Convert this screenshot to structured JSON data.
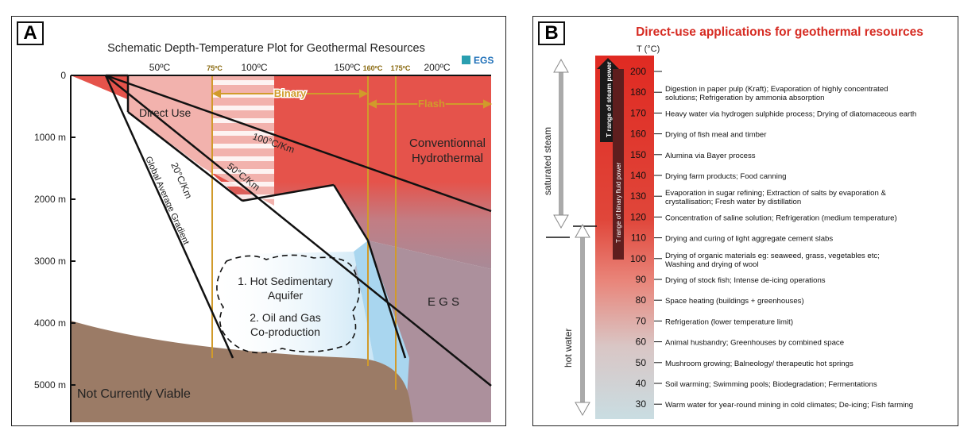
{
  "panel_a": {
    "label": "A",
    "title": "Schematic Depth-Temperature Plot for Geothermal Resources",
    "logo": "EGS",
    "temp_ticks": [
      "50ºC",
      "75ºC",
      "100ºC",
      "150ºC",
      "160ºC",
      "175ºC",
      "200ºC"
    ],
    "depth_ticks": [
      "0",
      "1000 m",
      "2000 m",
      "3000 m",
      "4000 m",
      "5000 m"
    ],
    "regions": {
      "direct_use": "Direct Use",
      "binary": "Binary",
      "flash": "Flash",
      "conventional_line1": "Conventionnal",
      "conventional_line2": "Hydrothermal",
      "egs": "E G S",
      "not_viable": "Not  Currently Viable",
      "aquifer_line1": "1. Hot Sedimentary",
      "aquifer_line2": "Aquifer",
      "oilgas_line1": "2. Oil and Gas",
      "oilgas_line2": "Co-production"
    },
    "gradients": {
      "g100": "100°C/Km",
      "g50": "50°C/Km",
      "g20_line1": "20°C/Km",
      "g20_line2": "Global Average Gradient"
    },
    "colors": {
      "conventional": "#e5534b",
      "direct_use": "#f2b2ad",
      "egs": "#a88a97",
      "not_viable": "#9b7b66",
      "aquifer_blue": "#a9d6ef",
      "orange": "#d19b2b"
    }
  },
  "panel_b": {
    "label": "B",
    "title": "Direct-use applications for geothermal resources",
    "temp_unit": "T (°C)",
    "steam_label": "saturated steam",
    "hotwater_label": "hot water",
    "steam_power_label": "T range of steam power",
    "binary_power_label": "T range of binary fluid power",
    "title_color": "#d62b22",
    "applications": [
      {
        "t": "200",
        "lines": [
          ""
        ]
      },
      {
        "t": "180",
        "lines": [
          "Digestion in paper pulp (Kraft); Evaporation of highly concentrated",
          "solutions; Refrigeration by ammonia absorption"
        ]
      },
      {
        "t": "170",
        "lines": [
          "Heavy water via hydrogen sulphide process; Drying of diatomaceous earth"
        ]
      },
      {
        "t": "160",
        "lines": [
          "Drying of fish meal and timber"
        ]
      },
      {
        "t": "150",
        "lines": [
          "Alumina via Bayer process"
        ]
      },
      {
        "t": "140",
        "lines": [
          "Drying farm products; Food canning"
        ]
      },
      {
        "t": "130",
        "lines": [
          "Evaporation in sugar refining; Extraction of salts by evaporation &",
          "crystallisation; Fresh water by distillation"
        ]
      },
      {
        "t": "120",
        "lines": [
          "Concentration of saline solution; Refrigeration (medium temperature)"
        ]
      },
      {
        "t": "110",
        "lines": [
          "Drying and curing of light aggregate cement slabs"
        ]
      },
      {
        "t": "100",
        "lines": [
          "Drying of organic materials eg: seaweed, grass, vegetables etc;",
          "Washing and drying of wool"
        ]
      },
      {
        "t": "90",
        "lines": [
          "Drying of stock fish; Intense de-icing operations"
        ]
      },
      {
        "t": "80",
        "lines": [
          "Space heating (buildings + greenhouses)"
        ]
      },
      {
        "t": "70",
        "lines": [
          "Refrigeration (lower temperature limit)"
        ]
      },
      {
        "t": "60",
        "lines": [
          "Animal husbandry; Greenhouses by combined space"
        ]
      },
      {
        "t": "50",
        "lines": [
          "Mushroom growing; Balneology/ therapeutic hot springs"
        ]
      },
      {
        "t": "40",
        "lines": [
          "Soil warming; Swimming pools; Biodegradation; Fermentations"
        ]
      },
      {
        "t": "30",
        "lines": [
          "Warm water for year-round mining in cold climates; De-icing; Fish farming"
        ]
      }
    ]
  }
}
